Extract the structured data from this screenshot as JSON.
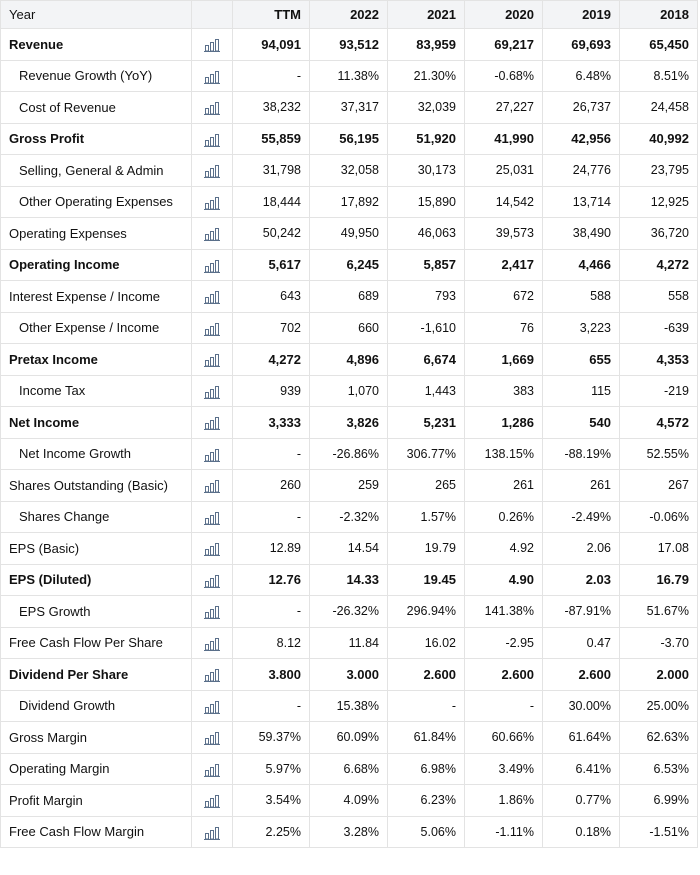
{
  "header": {
    "label": "Year",
    "columns": [
      "TTM",
      "2022",
      "2021",
      "2020",
      "2019",
      "2018"
    ]
  },
  "colors": {
    "positive": "#1a9440",
    "negative": "#e02020",
    "header_bg": "#f3f4f6",
    "grid": "#e3e3e3"
  },
  "chart_icon": "bar-chart-icon",
  "rows": [
    {
      "label": "Revenue",
      "bold": true,
      "indent": false,
      "values": [
        "94,091",
        "93,512",
        "83,959",
        "69,217",
        "69,693",
        "65,450"
      ]
    },
    {
      "label": "Revenue Growth (YoY)",
      "bold": false,
      "indent": true,
      "values": [
        "-",
        "11.38%",
        "21.30%",
        "-0.68%",
        "6.48%",
        "8.51%"
      ]
    },
    {
      "label": "Cost of Revenue",
      "bold": false,
      "indent": true,
      "values": [
        "38,232",
        "37,317",
        "32,039",
        "27,227",
        "26,737",
        "24,458"
      ]
    },
    {
      "label": "Gross Profit",
      "bold": true,
      "indent": false,
      "values": [
        "55,859",
        "56,195",
        "51,920",
        "41,990",
        "42,956",
        "40,992"
      ]
    },
    {
      "label": "Selling, General & Admin",
      "bold": false,
      "indent": true,
      "values": [
        "31,798",
        "32,058",
        "30,173",
        "25,031",
        "24,776",
        "23,795"
      ]
    },
    {
      "label": "Other Operating Expenses",
      "bold": false,
      "indent": true,
      "values": [
        "18,444",
        "17,892",
        "15,890",
        "14,542",
        "13,714",
        "12,925"
      ]
    },
    {
      "label": "Operating Expenses",
      "bold": false,
      "indent": false,
      "values": [
        "50,242",
        "49,950",
        "46,063",
        "39,573",
        "38,490",
        "36,720"
      ]
    },
    {
      "label": "Operating Income",
      "bold": true,
      "indent": false,
      "values": [
        "5,617",
        "6,245",
        "5,857",
        "2,417",
        "4,466",
        "4,272"
      ]
    },
    {
      "label": "Interest Expense / Income",
      "bold": false,
      "indent": false,
      "values": [
        "643",
        "689",
        "793",
        "672",
        "588",
        "558"
      ]
    },
    {
      "label": "Other Expense / Income",
      "bold": false,
      "indent": true,
      "values": [
        "702",
        "660",
        "-1,610",
        "76",
        "3,223",
        "-639"
      ]
    },
    {
      "label": "Pretax Income",
      "bold": true,
      "indent": false,
      "values": [
        "4,272",
        "4,896",
        "6,674",
        "1,669",
        "655",
        "4,353"
      ]
    },
    {
      "label": "Income Tax",
      "bold": false,
      "indent": true,
      "values": [
        "939",
        "1,070",
        "1,443",
        "383",
        "115",
        "-219"
      ]
    },
    {
      "label": "Net Income",
      "bold": true,
      "indent": false,
      "values": [
        "3,333",
        "3,826",
        "5,231",
        "1,286",
        "540",
        "4,572"
      ]
    },
    {
      "label": "Net Income Growth",
      "bold": false,
      "indent": true,
      "values": [
        "-",
        "-26.86%",
        "306.77%",
        "138.15%",
        "-88.19%",
        "52.55%"
      ]
    },
    {
      "label": "Shares Outstanding (Basic)",
      "bold": false,
      "indent": false,
      "values": [
        "260",
        "259",
        "265",
        "261",
        "261",
        "267"
      ]
    },
    {
      "label": "Shares Change",
      "bold": false,
      "indent": true,
      "values": [
        "-",
        "-2.32%",
        "1.57%",
        "0.26%",
        "-2.49%",
        "-0.06%"
      ]
    },
    {
      "label": "EPS (Basic)",
      "bold": false,
      "indent": false,
      "values": [
        "12.89",
        "14.54",
        "19.79",
        "4.92",
        "2.06",
        "17.08"
      ]
    },
    {
      "label": "EPS (Diluted)",
      "bold": true,
      "indent": false,
      "values": [
        "12.76",
        "14.33",
        "19.45",
        "4.90",
        "2.03",
        "16.79"
      ]
    },
    {
      "label": "EPS Growth",
      "bold": false,
      "indent": true,
      "values": [
        "-",
        "-26.32%",
        "296.94%",
        "141.38%",
        "-87.91%",
        "51.67%"
      ]
    },
    {
      "label": "Free Cash Flow Per Share",
      "bold": false,
      "indent": false,
      "values": [
        "8.12",
        "11.84",
        "16.02",
        "-2.95",
        "0.47",
        "-3.70"
      ]
    },
    {
      "label": "Dividend Per Share",
      "bold": true,
      "indent": false,
      "values": [
        "3.800",
        "3.000",
        "2.600",
        "2.600",
        "2.600",
        "2.000"
      ]
    },
    {
      "label": "Dividend Growth",
      "bold": false,
      "indent": true,
      "values": [
        "-",
        "15.38%",
        "-",
        "-",
        "30.00%",
        "25.00%"
      ]
    },
    {
      "label": "Gross Margin",
      "bold": false,
      "indent": false,
      "values": [
        "59.37%",
        "60.09%",
        "61.84%",
        "60.66%",
        "61.64%",
        "62.63%"
      ]
    },
    {
      "label": "Operating Margin",
      "bold": false,
      "indent": false,
      "values": [
        "5.97%",
        "6.68%",
        "6.98%",
        "3.49%",
        "6.41%",
        "6.53%"
      ]
    },
    {
      "label": "Profit Margin",
      "bold": false,
      "indent": false,
      "values": [
        "3.54%",
        "4.09%",
        "6.23%",
        "1.86%",
        "0.77%",
        "6.99%"
      ]
    },
    {
      "label": "Free Cash Flow Margin",
      "bold": false,
      "indent": false,
      "values": [
        "2.25%",
        "3.28%",
        "5.06%",
        "-1.11%",
        "0.18%",
        "-1.51%"
      ]
    }
  ],
  "colored_rows": [
    {
      "row": 1,
      "signs": [
        "",
        "pos",
        "pos",
        "neg",
        "pos",
        "pos"
      ]
    },
    {
      "row": 13,
      "signs": [
        "",
        "neg",
        "pos",
        "pos",
        "neg",
        "pos"
      ]
    },
    {
      "row": 15,
      "signs": [
        "",
        "pos",
        "neg",
        "neg",
        "pos",
        "pos"
      ]
    },
    {
      "row": 18,
      "signs": [
        "",
        "neg",
        "pos",
        "pos",
        "neg",
        "pos"
      ]
    },
    {
      "row": 21,
      "signs": [
        "",
        "pos",
        "",
        "",
        "pos",
        "pos"
      ]
    }
  ]
}
